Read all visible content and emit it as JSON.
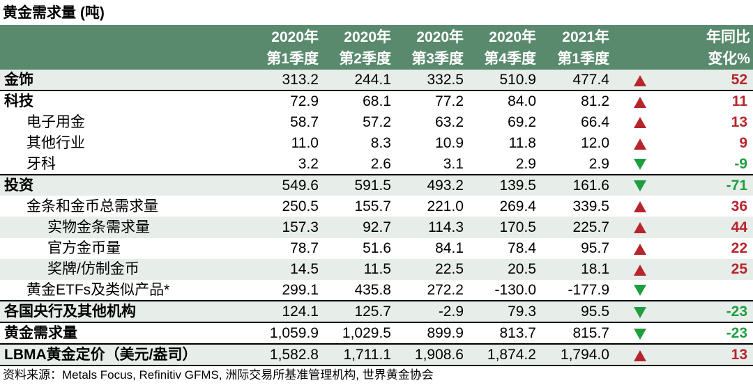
{
  "title": "黄金需求量 (吨)",
  "header": {
    "columns": [
      {
        "l1": "2020年",
        "l2": "第1季度"
      },
      {
        "l1": "2020年",
        "l2": "第2季度"
      },
      {
        "l1": "2020年",
        "l2": "第3季度"
      },
      {
        "l1": "2020年",
        "l2": "第4季度"
      },
      {
        "l1": "2021年",
        "l2": "第1季度"
      }
    ],
    "change": {
      "l1": "年同比",
      "l2": "变化%"
    }
  },
  "rows": [
    {
      "label": "金饰",
      "values": [
        "313.2",
        "244.1",
        "332.5",
        "510.9",
        "477.4"
      ],
      "arrow": "up",
      "change": "52"
    },
    {
      "label": "科技",
      "values": [
        "72.9",
        "68.1",
        "77.2",
        "84.0",
        "81.2"
      ],
      "arrow": "up",
      "change": "11"
    },
    {
      "label": "电子用金",
      "values": [
        "58.7",
        "57.2",
        "63.2",
        "69.2",
        "66.4"
      ],
      "arrow": "up",
      "change": "13"
    },
    {
      "label": "其他行业",
      "values": [
        "11.0",
        "8.3",
        "10.9",
        "11.8",
        "12.0"
      ],
      "arrow": "up",
      "change": "9"
    },
    {
      "label": "牙科",
      "values": [
        "3.2",
        "2.6",
        "3.1",
        "2.9",
        "2.9"
      ],
      "arrow": "down",
      "change": "-9"
    },
    {
      "label": "投资",
      "values": [
        "549.6",
        "591.5",
        "493.2",
        "139.5",
        "161.6"
      ],
      "arrow": "down",
      "change": "-71"
    },
    {
      "label": "金条和金币总需求量",
      "values": [
        "250.5",
        "155.7",
        "221.0",
        "269.4",
        "339.5"
      ],
      "arrow": "up",
      "change": "36"
    },
    {
      "label": "实物金条需求量",
      "values": [
        "157.3",
        "92.7",
        "114.3",
        "170.5",
        "225.7"
      ],
      "arrow": "up",
      "change": "44"
    },
    {
      "label": "官方金币量",
      "values": [
        "78.7",
        "51.6",
        "84.1",
        "78.4",
        "95.7"
      ],
      "arrow": "up",
      "change": "22"
    },
    {
      "label": "奖牌/仿制金币",
      "values": [
        "14.5",
        "11.5",
        "22.5",
        "20.5",
        "18.1"
      ],
      "arrow": "up",
      "change": "25"
    },
    {
      "label": "黄金ETFs及类似产品*",
      "values": [
        "299.1",
        "435.8",
        "272.2",
        "-130.0",
        "-177.9"
      ],
      "arrow": "down",
      "change": ""
    },
    {
      "label": "各国央行及其他机构",
      "values": [
        "124.1",
        "125.7",
        "-2.9",
        "79.3",
        "95.5"
      ],
      "arrow": "down",
      "change": "-23"
    },
    {
      "label": "黄金需求量",
      "values": [
        "1,059.9",
        "1,029.5",
        "899.9",
        "813.7",
        "815.7"
      ],
      "arrow": "down",
      "change": "-23"
    },
    {
      "label": "LBMA黄金定价（美元/盎司）",
      "values": [
        "1,582.8",
        "1,711.1",
        "1,908.6",
        "1,874.2",
        "1,794.0"
      ],
      "arrow": "up",
      "change": "13"
    }
  ],
  "source": "资料来源：Metals Focus, Refinitiv GFMS, 洲际交易所基准管理机构, 世界黄金协会",
  "colors": {
    "header_bg": "#5a8a6e",
    "shade": "#e7ede9",
    "up": "#b7252c",
    "down": "#1f9e3f"
  }
}
